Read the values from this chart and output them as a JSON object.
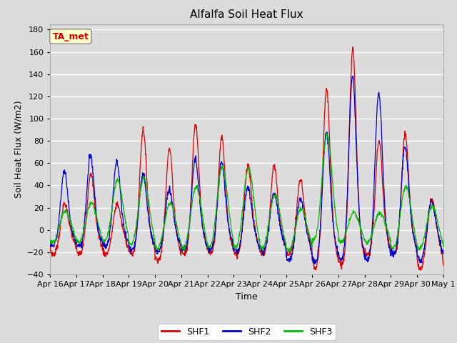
{
  "title": "Alfalfa Soil Heat Flux",
  "xlabel": "Time",
  "ylabel": "Soil Heat Flux (W/m2)",
  "ylim": [
    -40,
    185
  ],
  "xlim": [
    0,
    360
  ],
  "plot_bg_color": "#dcdcdc",
  "grid_color": "white",
  "shf1_color": "#dd0000",
  "shf2_color": "#0000cc",
  "shf3_color": "#00bb00",
  "legend_label1": "SHF1",
  "legend_label2": "SHF2",
  "legend_label3": "SHF3",
  "annotation_text": "TA_met",
  "annotation_color": "#cc0000",
  "annotation_bg": "#ffffcc",
  "xtick_labels": [
    "Apr 16",
    "Apr 17",
    "Apr 18",
    "Apr 19",
    "Apr 20",
    "Apr 21",
    "Apr 22",
    "Apr 23",
    "Apr 24",
    "Apr 25",
    "Apr 26",
    "Apr 27",
    "Apr 28",
    "Apr 29",
    "Apr 30",
    "May 1"
  ],
  "xtick_positions": [
    0,
    24,
    48,
    72,
    96,
    120,
    144,
    168,
    192,
    216,
    240,
    264,
    288,
    312,
    336,
    360
  ],
  "ytick_positions": [
    -40,
    -20,
    0,
    20,
    40,
    60,
    80,
    100,
    120,
    140,
    160,
    180
  ],
  "n_points": 1441,
  "shf1_peaks": [
    25,
    53,
    25,
    92,
    75,
    97,
    85,
    60,
    60,
    47,
    130,
    165,
    82,
    88,
    30
  ],
  "shf2_peaks": [
    54,
    68,
    62,
    52,
    38,
    65,
    62,
    40,
    35,
    30,
    90,
    140,
    125,
    77,
    28
  ],
  "shf3_peaks": [
    18,
    25,
    46,
    47,
    25,
    40,
    58,
    57,
    32,
    20,
    87,
    16,
    16,
    40,
    22
  ],
  "shf1_troughs": [
    -22,
    -22,
    -22,
    -22,
    -28,
    -22,
    -22,
    -22,
    -22,
    -22,
    -35,
    -32,
    -22,
    -22,
    -35
  ],
  "shf2_troughs": [
    -15,
    -15,
    -15,
    -18,
    -20,
    -18,
    -18,
    -20,
    -20,
    -28,
    -30,
    -28,
    -28,
    -22,
    -28
  ],
  "shf3_troughs": [
    -12,
    -12,
    -12,
    -15,
    -18,
    -18,
    -18,
    -18,
    -18,
    -20,
    -12,
    -12,
    -12,
    -18,
    -18
  ]
}
